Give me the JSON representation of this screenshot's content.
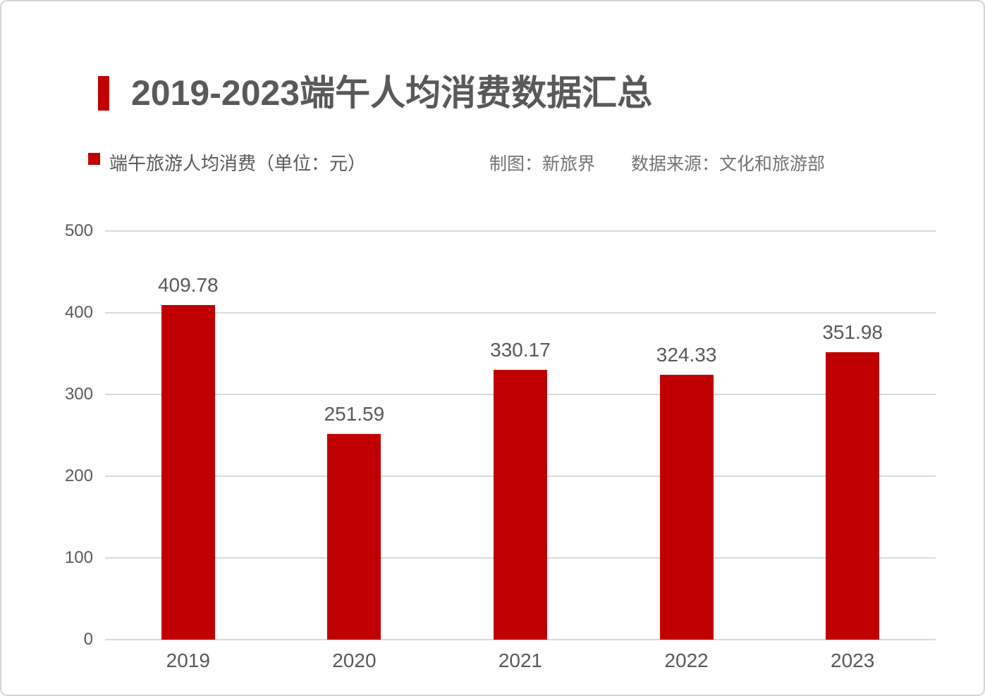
{
  "colors": {
    "accent_red": "#C00000",
    "title_gray": "#595959",
    "text_gray": "#595959",
    "credit_gray": "#737373",
    "gridline_gray": "#D9D9D9",
    "card_border_gray": "#D5D5D5"
  },
  "chart_data": {
    "type": "bar",
    "title": "2019-2023端午人均消费数据汇总",
    "legend_label": "端午旅游人均消费（单位：元）",
    "credits": {
      "author": "制图：新旅界",
      "source": "数据来源：文化和旅游部"
    },
    "categories": [
      "2019",
      "2020",
      "2021",
      "2022",
      "2023"
    ],
    "values": [
      409.78,
      251.59,
      330.17,
      324.33,
      351.98
    ],
    "value_labels": [
      "409.78",
      "251.59",
      "330.17",
      "324.33",
      "351.98"
    ],
    "xlabel": "",
    "ylabel": "",
    "ylim": [
      0,
      500
    ],
    "y_ticks": [
      500,
      400,
      300,
      200,
      100,
      0
    ],
    "grid": true,
    "data_labels": true,
    "legend_position": "top-left",
    "bar_color": "#C00000"
  }
}
